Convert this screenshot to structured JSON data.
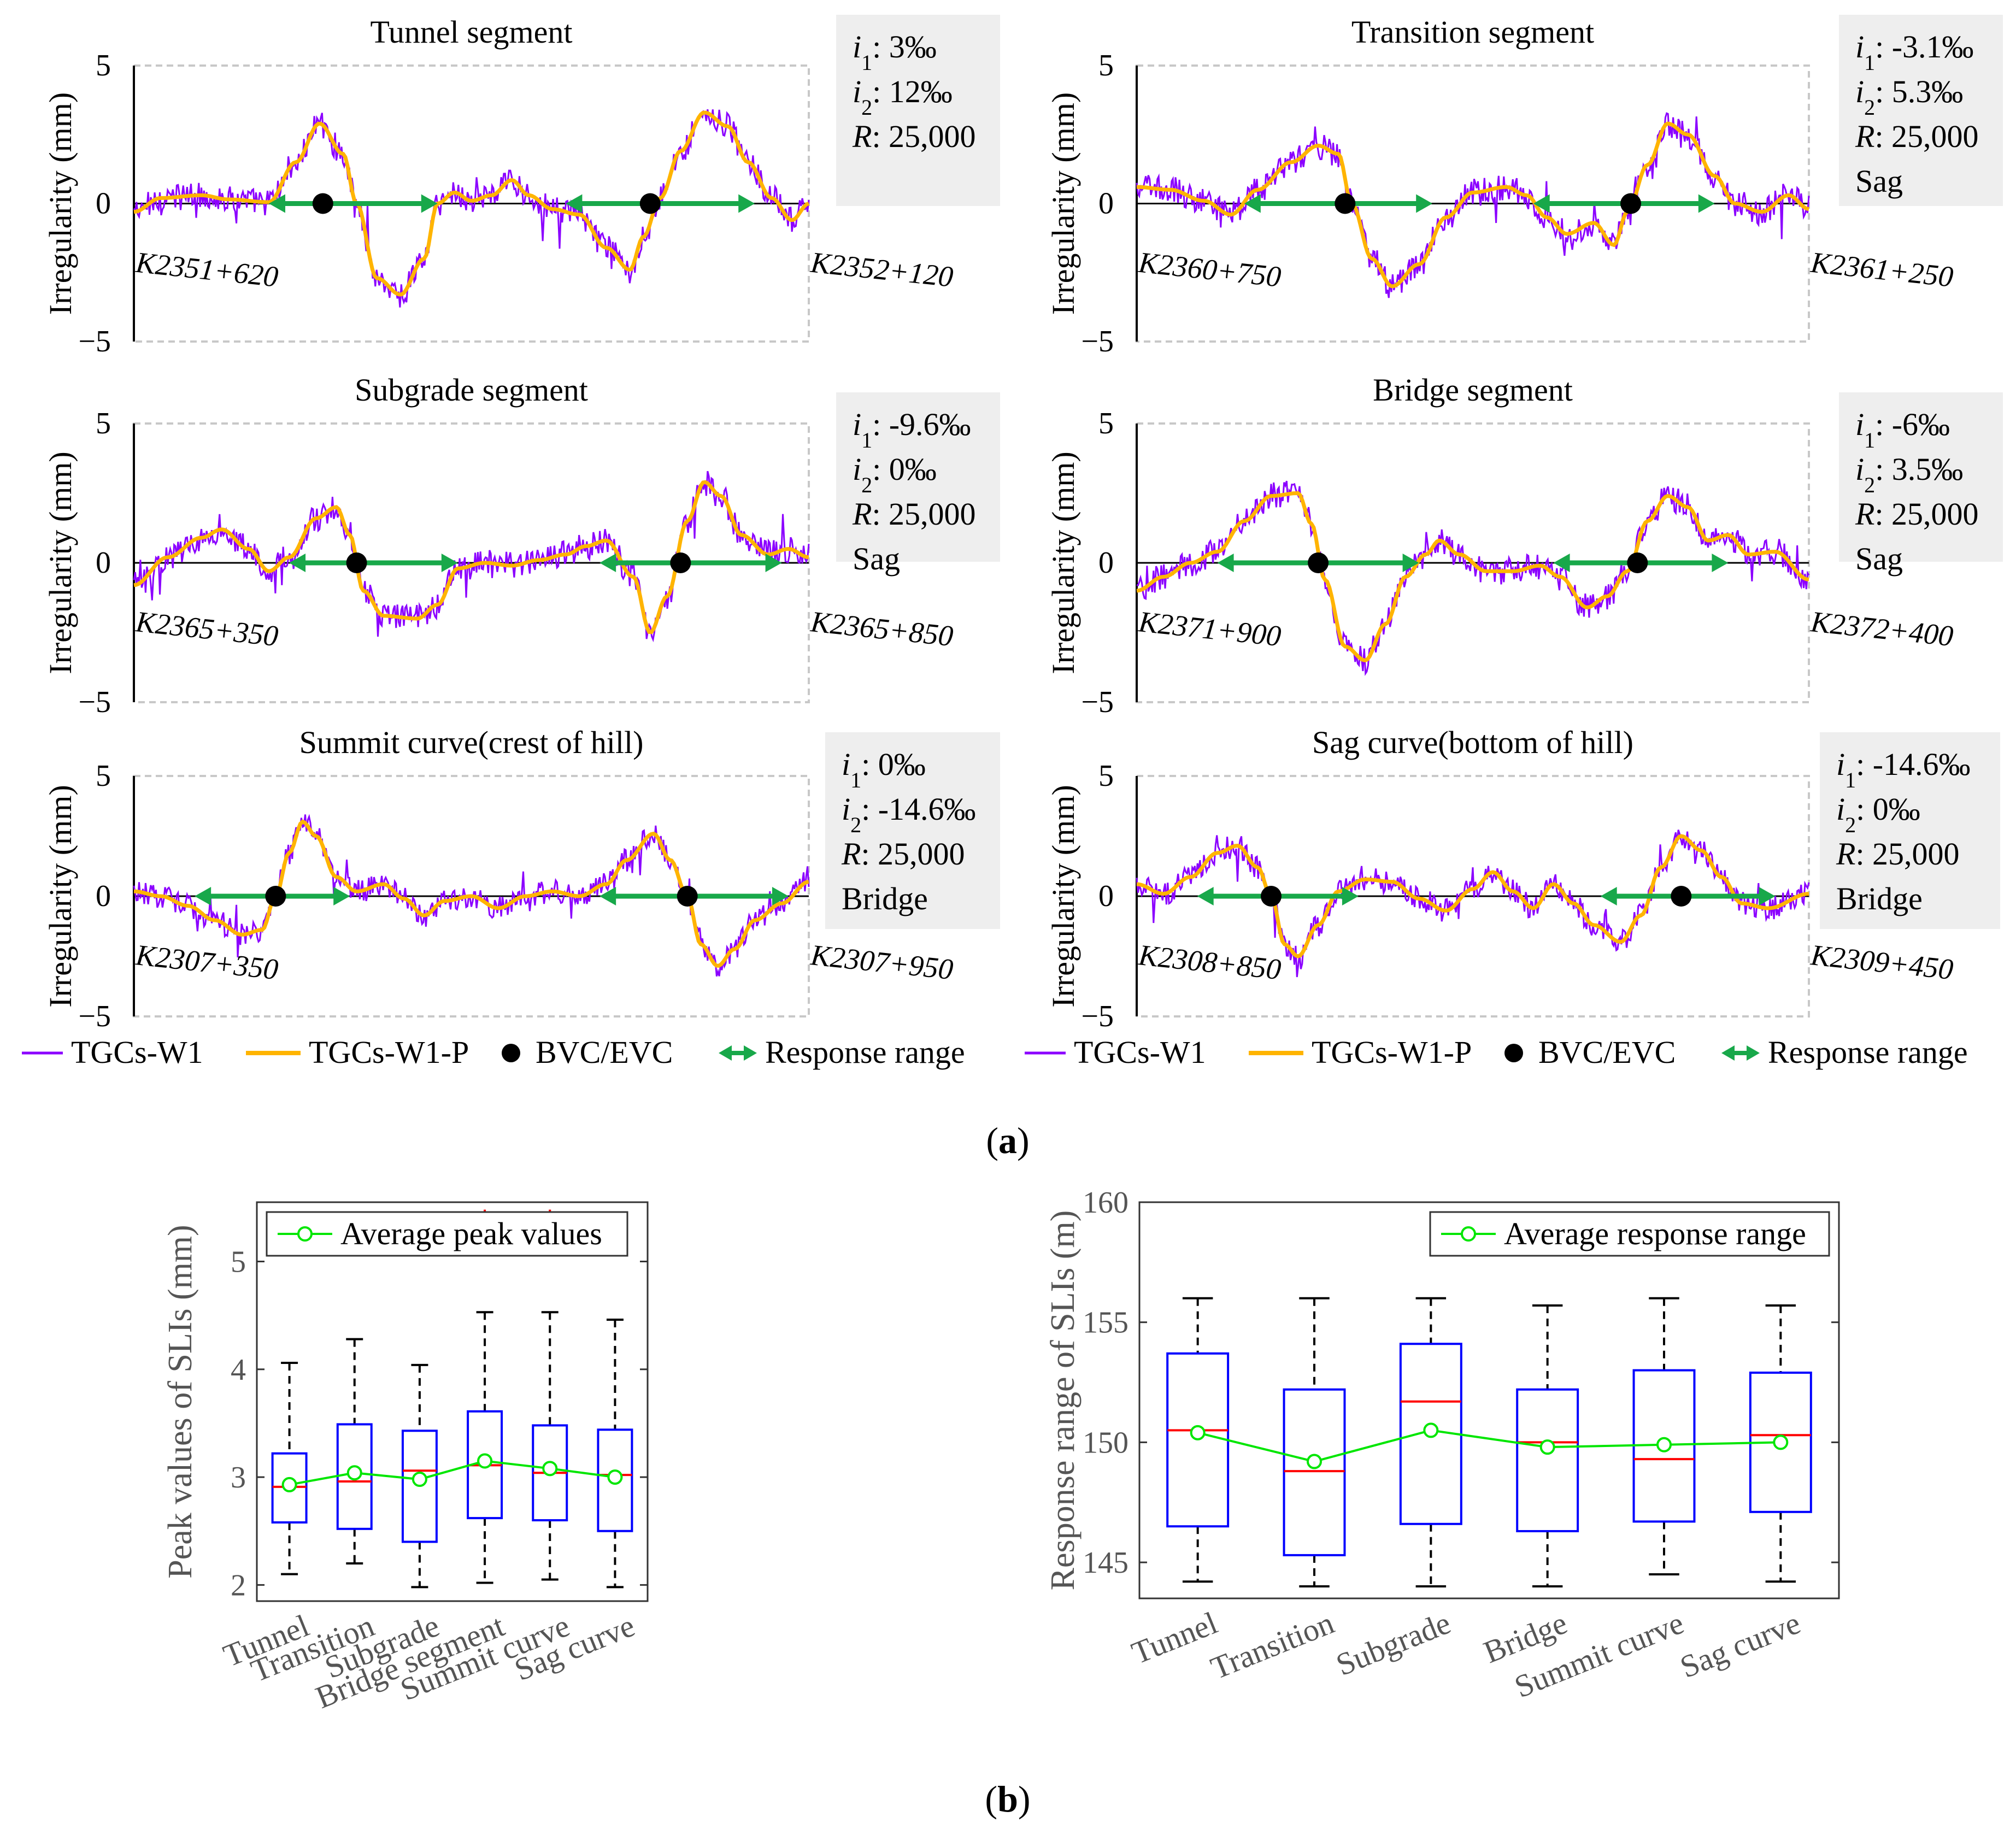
{
  "figure": {
    "label_a_prefix": "(",
    "label_a": "a",
    "label_a_suffix": ")",
    "label_b_prefix": "(",
    "label_b": "b",
    "label_b_suffix": ")"
  },
  "colors": {
    "measured": "#8B00FF",
    "predicted": "#FFB400",
    "marker": "#000000",
    "range": "#18A84A",
    "box": "#0000FF",
    "median": "#FF0000",
    "mean": "#00E600",
    "outlier": "#FF0000",
    "statbox": "#EEEEEE"
  },
  "panels_a": [
    {
      "title": "Tunnel segment",
      "ylabel": "Irregularity (mm)",
      "yticks": [
        "5",
        "0",
        "−5"
      ],
      "ylim": [
        -5,
        5
      ],
      "start": "K2351+620",
      "end": "K2352+120",
      "stats": [
        {
          "v": "i",
          "s": "1",
          "t": ": 3‰"
        },
        {
          "v": "i",
          "s": "2",
          "t": ": 12‰"
        },
        {
          "v": "R",
          "s": "",
          "t": ": 25,000"
        }
      ],
      "markers": [
        0.28,
        0.765
      ],
      "arrows": [
        [
          0.2,
          0.45
        ],
        [
          0.64,
          0.92
        ]
      ],
      "pred": [
        [
          0,
          -0.3
        ],
        [
          0.04,
          0.2
        ],
        [
          0.1,
          0.3
        ],
        [
          0.14,
          0.15
        ],
        [
          0.2,
          0.05
        ],
        [
          0.24,
          1.5
        ],
        [
          0.275,
          2.9
        ],
        [
          0.31,
          1.8
        ],
        [
          0.33,
          0
        ],
        [
          0.36,
          -2.7
        ],
        [
          0.395,
          -3.3
        ],
        [
          0.43,
          -2.0
        ],
        [
          0.45,
          0
        ],
        [
          0.475,
          0.4
        ],
        [
          0.5,
          0.1
        ],
        [
          0.53,
          0.3
        ],
        [
          0.56,
          0.85
        ],
        [
          0.585,
          0.3
        ],
        [
          0.62,
          -0.2
        ],
        [
          0.66,
          -0.4
        ],
        [
          0.7,
          -1.6
        ],
        [
          0.735,
          -2.4
        ],
        [
          0.755,
          -1.2
        ],
        [
          0.78,
          0.2
        ],
        [
          0.81,
          1.9
        ],
        [
          0.845,
          3.3
        ],
        [
          0.88,
          2.8
        ],
        [
          0.91,
          1.5
        ],
        [
          0.945,
          0.2
        ],
        [
          0.975,
          -0.6
        ],
        [
          1.0,
          0
        ]
      ]
    },
    {
      "title": "Transition segment",
      "ylabel": "Irregularity (mm)",
      "yticks": [
        "5",
        "0",
        "−5"
      ],
      "ylim": [
        -5,
        5
      ],
      "start": "K2360+750",
      "end": "K2361+250",
      "stats": [
        {
          "v": "i",
          "s": "1",
          "t": ": -3.1‰"
        },
        {
          "v": "i",
          "s": "2",
          "t": ": 5.3‰"
        },
        {
          "v": "R",
          "s": "",
          "t": ": 25,000"
        },
        {
          "v": "",
          "s": "",
          "t": "Sag"
        }
      ],
      "markers": [
        0.31,
        0.735
      ],
      "arrows": [
        [
          0.16,
          0.44
        ],
        [
          0.59,
          0.86
        ]
      ],
      "pred": [
        [
          0,
          0.6
        ],
        [
          0.05,
          0.5
        ],
        [
          0.1,
          0.1
        ],
        [
          0.14,
          -0.4
        ],
        [
          0.18,
          0.5
        ],
        [
          0.23,
          1.5
        ],
        [
          0.27,
          2.1
        ],
        [
          0.3,
          1.8
        ],
        [
          0.32,
          0
        ],
        [
          0.35,
          -2.0
        ],
        [
          0.38,
          -3.0
        ],
        [
          0.42,
          -2.2
        ],
        [
          0.46,
          -0.5
        ],
        [
          0.5,
          0.4
        ],
        [
          0.55,
          0.6
        ],
        [
          0.58,
          0.3
        ],
        [
          0.61,
          -0.5
        ],
        [
          0.64,
          -1.1
        ],
        [
          0.68,
          -0.7
        ],
        [
          0.71,
          -1.5
        ],
        [
          0.73,
          -0.3
        ],
        [
          0.76,
          1.4
        ],
        [
          0.79,
          2.9
        ],
        [
          0.82,
          2.5
        ],
        [
          0.86,
          1.0
        ],
        [
          0.89,
          0
        ],
        [
          0.93,
          -0.3
        ],
        [
          0.97,
          0.3
        ],
        [
          1.0,
          -0.2
        ]
      ]
    },
    {
      "title": "Subgrade segment",
      "ylabel": "Irregularity (mm)",
      "yticks": [
        "5",
        "0",
        "−5"
      ],
      "ylim": [
        -5,
        5
      ],
      "start": "K2365+350",
      "end": "K2365+850",
      "stats": [
        {
          "v": "i",
          "s": "1",
          "t": ": -9.6‰"
        },
        {
          "v": "i",
          "s": "2",
          "t": ": 0‰"
        },
        {
          "v": "R",
          "s": "",
          "t": ": 25,000"
        },
        {
          "v": "",
          "s": "",
          "t": "Sag"
        }
      ],
      "markers": [
        0.33,
        0.81
      ],
      "arrows": [
        [
          0.23,
          0.48
        ],
        [
          0.69,
          0.96
        ]
      ],
      "pred": [
        [
          0,
          -0.8
        ],
        [
          0.05,
          0.2
        ],
        [
          0.1,
          0.9
        ],
        [
          0.13,
          1.2
        ],
        [
          0.17,
          0.5
        ],
        [
          0.2,
          -0.3
        ],
        [
          0.23,
          0.2
        ],
        [
          0.27,
          1.6
        ],
        [
          0.3,
          2.0
        ],
        [
          0.32,
          1.0
        ],
        [
          0.34,
          -1.0
        ],
        [
          0.37,
          -1.9
        ],
        [
          0.42,
          -2.0
        ],
        [
          0.45,
          -1.5
        ],
        [
          0.48,
          -0.2
        ],
        [
          0.52,
          0
        ],
        [
          0.56,
          -0.1
        ],
        [
          0.6,
          0.1
        ],
        [
          0.64,
          0.3
        ],
        [
          0.67,
          0.6
        ],
        [
          0.7,
          0.8
        ],
        [
          0.74,
          -0.5
        ],
        [
          0.765,
          -2.5
        ],
        [
          0.79,
          -1.2
        ],
        [
          0.82,
          1.5
        ],
        [
          0.845,
          2.9
        ],
        [
          0.87,
          2.4
        ],
        [
          0.9,
          1.0
        ],
        [
          0.94,
          0.3
        ],
        [
          0.97,
          0.5
        ],
        [
          1.0,
          0.2
        ]
      ]
    },
    {
      "title": "Bridge segment",
      "ylabel": "Irregularity (mm)",
      "yticks": [
        "5",
        "0",
        "−5"
      ],
      "ylim": [
        -5,
        5
      ],
      "start": "K2371+900",
      "end": "K2372+400",
      "stats": [
        {
          "v": "i",
          "s": "1",
          "t": ": -6‰"
        },
        {
          "v": "i",
          "s": "2",
          "t": ": 3.5‰"
        },
        {
          "v": "R",
          "s": "",
          "t": ": 25,000"
        },
        {
          "v": "",
          "s": "",
          "t": "Sag"
        }
      ],
      "markers": [
        0.27,
        0.745
      ],
      "arrows": [
        [
          0.12,
          0.42
        ],
        [
          0.62,
          0.88
        ]
      ],
      "pred": [
        [
          0,
          -1.0
        ],
        [
          0.04,
          -0.5
        ],
        [
          0.08,
          0
        ],
        [
          0.12,
          0.4
        ],
        [
          0.16,
          1.5
        ],
        [
          0.2,
          2.4
        ],
        [
          0.24,
          2.5
        ],
        [
          0.26,
          1.4
        ],
        [
          0.28,
          -0.6
        ],
        [
          0.31,
          -3.0
        ],
        [
          0.34,
          -3.5
        ],
        [
          0.37,
          -2.2
        ],
        [
          0.4,
          -0.5
        ],
        [
          0.43,
          0.3
        ],
        [
          0.45,
          0.8
        ],
        [
          0.48,
          0.3
        ],
        [
          0.52,
          -0.3
        ],
        [
          0.56,
          -0.3
        ],
        [
          0.6,
          -0.1
        ],
        [
          0.63,
          -0.5
        ],
        [
          0.67,
          -1.6
        ],
        [
          0.7,
          -1.2
        ],
        [
          0.73,
          -0.3
        ],
        [
          0.76,
          1.5
        ],
        [
          0.79,
          2.4
        ],
        [
          0.82,
          2.0
        ],
        [
          0.85,
          0.8
        ],
        [
          0.88,
          1.0
        ],
        [
          0.91,
          0.3
        ],
        [
          0.95,
          0.4
        ],
        [
          1.0,
          -0.6
        ]
      ]
    },
    {
      "title": "Summit curve(crest of hill)",
      "ylabel": "Irregularity (mm)",
      "yticks": [
        "5",
        "0",
        "−5"
      ],
      "ylim": [
        -5,
        5
      ],
      "start": "K2307+350",
      "end": "K2307+950",
      "stats": [
        {
          "v": "i",
          "s": "1",
          "t": ": 0‰"
        },
        {
          "v": "i",
          "s": "2",
          "t": ": -14.6‰"
        },
        {
          "v": "R",
          "s": "",
          "t": ": 25,000"
        },
        {
          "v": "",
          "s": "",
          "t": "Bridge"
        }
      ],
      "markers": [
        0.21,
        0.82
      ],
      "arrows": [
        [
          0.09,
          0.32
        ],
        [
          0.69,
          0.97
        ]
      ],
      "pred": [
        [
          0,
          0.2
        ],
        [
          0.04,
          0
        ],
        [
          0.08,
          -0.4
        ],
        [
          0.12,
          -1.0
        ],
        [
          0.16,
          -1.6
        ],
        [
          0.19,
          -1.4
        ],
        [
          0.21,
          0
        ],
        [
          0.23,
          1.8
        ],
        [
          0.25,
          3.1
        ],
        [
          0.27,
          2.5
        ],
        [
          0.3,
          0.8
        ],
        [
          0.33,
          0.2
        ],
        [
          0.37,
          0.5
        ],
        [
          0.4,
          -0.1
        ],
        [
          0.43,
          -0.8
        ],
        [
          0.46,
          -0.2
        ],
        [
          0.5,
          0
        ],
        [
          0.54,
          -0.5
        ],
        [
          0.58,
          0
        ],
        [
          0.62,
          0.2
        ],
        [
          0.66,
          0
        ],
        [
          0.7,
          0.5
        ],
        [
          0.73,
          1.5
        ],
        [
          0.77,
          2.6
        ],
        [
          0.795,
          1.5
        ],
        [
          0.82,
          0
        ],
        [
          0.84,
          -2.0
        ],
        [
          0.865,
          -2.9
        ],
        [
          0.89,
          -2.2
        ],
        [
          0.92,
          -1.0
        ],
        [
          0.96,
          -0.3
        ],
        [
          1.0,
          0.6
        ]
      ]
    },
    {
      "title": "Sag curve(bottom of hill)",
      "ylabel": "Irregularity (mm)",
      "yticks": [
        "5",
        "0",
        "−5"
      ],
      "ylim": [
        -5,
        5
      ],
      "start": "K2308+850",
      "end": "K2309+450",
      "stats": [
        {
          "v": "i",
          "s": "1",
          "t": ": -14.6‰"
        },
        {
          "v": "i",
          "s": "2",
          "t": ": 0‰"
        },
        {
          "v": "R",
          "s": "",
          "t": ": 25,000"
        },
        {
          "v": "",
          "s": "",
          "t": "Bridge"
        }
      ],
      "markers": [
        0.2,
        0.81
      ],
      "arrows": [
        [
          0.09,
          0.33
        ],
        [
          0.69,
          0.95
        ]
      ],
      "pred": [
        [
          0,
          0.5
        ],
        [
          0.04,
          0.1
        ],
        [
          0.08,
          0.8
        ],
        [
          0.12,
          1.8
        ],
        [
          0.15,
          2.1
        ],
        [
          0.18,
          1.2
        ],
        [
          0.2,
          0
        ],
        [
          0.22,
          -2.0
        ],
        [
          0.24,
          -2.5
        ],
        [
          0.27,
          -1.2
        ],
        [
          0.3,
          0.2
        ],
        [
          0.34,
          0.7
        ],
        [
          0.38,
          0.6
        ],
        [
          0.42,
          -0.1
        ],
        [
          0.46,
          -0.6
        ],
        [
          0.5,
          0.3
        ],
        [
          0.53,
          1.0
        ],
        [
          0.56,
          0.2
        ],
        [
          0.59,
          -0.5
        ],
        [
          0.62,
          0.5
        ],
        [
          0.65,
          -0.3
        ],
        [
          0.68,
          -1.2
        ],
        [
          0.72,
          -1.9
        ],
        [
          0.75,
          -0.8
        ],
        [
          0.78,
          1.2
        ],
        [
          0.81,
          2.5
        ],
        [
          0.84,
          1.9
        ],
        [
          0.87,
          0.8
        ],
        [
          0.9,
          -0.3
        ],
        [
          0.94,
          -0.5
        ],
        [
          1.0,
          0.1
        ]
      ]
    }
  ],
  "legend_a": {
    "items": [
      {
        "label": "TGCs-W1"
      },
      {
        "label": "TGCs-W1-P"
      },
      {
        "label": "BVC/EVC"
      },
      {
        "label": "Response range"
      }
    ]
  },
  "chart_data": [
    {
      "type": "box",
      "title": "",
      "xlabel": "",
      "ylabel": "Peak values of SLIs (mm)",
      "ylim": [
        1.85,
        5.55
      ],
      "yticks": [
        2,
        3,
        4,
        5
      ],
      "categories": [
        "Tunnel",
        "Transition",
        "Subgrade",
        "Bridge segment",
        "Summit curve",
        "Sag curve"
      ],
      "whisker_low": [
        2.1,
        2.2,
        1.98,
        2.02,
        2.05,
        1.98
      ],
      "q1": [
        2.58,
        2.52,
        2.4,
        2.62,
        2.6,
        2.5
      ],
      "median": [
        2.91,
        2.96,
        3.06,
        3.11,
        3.04,
        3.02
      ],
      "q3": [
        3.22,
        3.49,
        3.43,
        3.61,
        3.48,
        3.44
      ],
      "whisker_high": [
        4.06,
        4.28,
        4.04,
        4.53,
        4.53,
        4.46
      ],
      "mean": [
        2.93,
        3.04,
        2.98,
        3.15,
        3.08,
        3.0
      ],
      "outliers": [
        [],
        [],
        [],
        [
          5.42
        ],
        [
          5.42
        ],
        []
      ],
      "legend": "Average peak values"
    },
    {
      "type": "box",
      "title": "",
      "xlabel": "",
      "ylabel": "Response range of SLIs (m)",
      "ylim": [
        143.5,
        160
      ],
      "yticks": [
        145,
        150,
        155,
        160
      ],
      "categories": [
        "Tunnel",
        "Transition",
        "Subgrade",
        "Bridge",
        "Summit curve",
        "Sag curve"
      ],
      "whisker_low": [
        144.2,
        144.0,
        144.0,
        144.0,
        144.5,
        144.2
      ],
      "q1": [
        146.5,
        145.3,
        146.6,
        146.3,
        146.7,
        147.1
      ],
      "median": [
        150.5,
        148.8,
        151.7,
        150.0,
        149.3,
        150.3
      ],
      "q3": [
        153.7,
        152.2,
        154.1,
        152.2,
        153.0,
        152.9
      ],
      "whisker_high": [
        156.0,
        156.0,
        156.0,
        155.7,
        156.0,
        155.7
      ],
      "mean": [
        150.4,
        149.2,
        150.5,
        149.8,
        149.9,
        150.0
      ],
      "outliers": [
        [],
        [],
        [],
        [],
        [],
        []
      ],
      "legend": "Average response range"
    }
  ]
}
